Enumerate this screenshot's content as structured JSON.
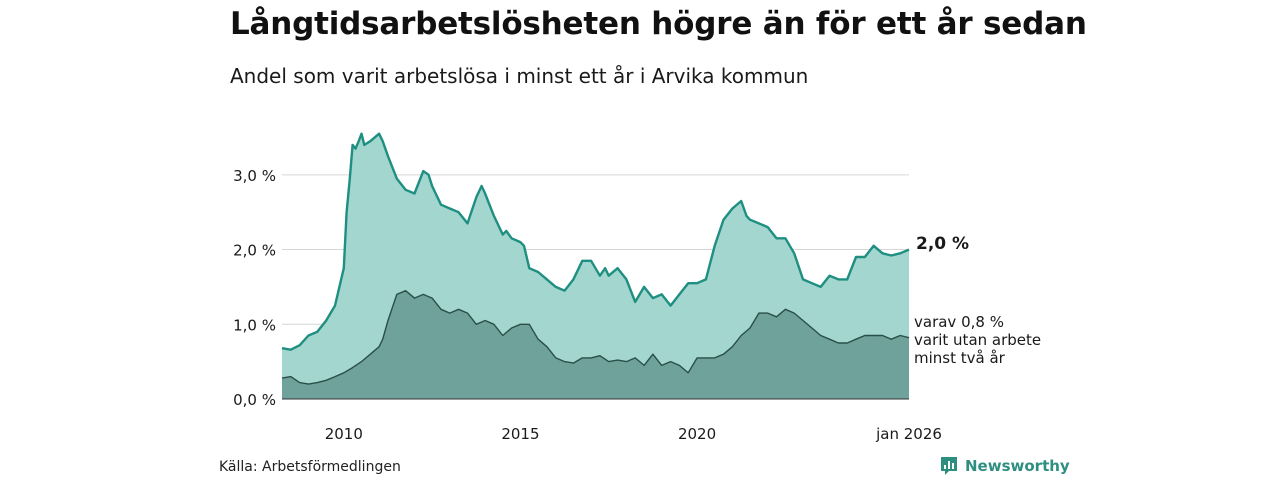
{
  "header": {
    "title": "Långtidsarbetslösheten högre än för ett år sedan",
    "subtitle": "Andel som varit arbetslösa i minst ett år i Arvika kommun"
  },
  "footer": {
    "source": "Källa: Arbetsförmedlingen",
    "brand": "Newsworthy",
    "brand_icon": "bar-chart-icon"
  },
  "colors": {
    "series1_fill": "#a3d6cf",
    "series1_line": "#1e8f80",
    "series2_fill": "#6fa29a",
    "series2_line": "#2a4f4a",
    "grid": "#d6d6d6",
    "brand": "#2e8f80"
  },
  "chart_data": {
    "type": "area",
    "x_range": [
      2008.25,
      2026.0
    ],
    "ylim": [
      0,
      3.6
    ],
    "y_ticks": [
      {
        "value": 0,
        "label": "0,0 %"
      },
      {
        "value": 1,
        "label": "1,0 %"
      },
      {
        "value": 2,
        "label": "2,0 %"
      },
      {
        "value": 3,
        "label": "3,0 %"
      }
    ],
    "x_ticks": [
      {
        "value": 2010.0,
        "label": "2010"
      },
      {
        "value": 2015.0,
        "label": "2015"
      },
      {
        "value": 2020.0,
        "label": "2020"
      },
      {
        "value": 2026.0,
        "label": "jan 2026"
      }
    ],
    "grid": true,
    "series": [
      {
        "x": [
          2008.25,
          2008.5,
          2008.75,
          2009.0,
          2009.25,
          2009.5,
          2009.75,
          2010.0,
          2010.08,
          2010.17,
          2010.25,
          2010.33,
          2010.42,
          2010.5,
          2010.58,
          2010.75,
          2011.0,
          2011.1,
          2011.25,
          2011.5,
          2011.75,
          2012.0,
          2012.25,
          2012.4,
          2012.5,
          2012.75,
          2013.0,
          2013.25,
          2013.5,
          2013.75,
          2013.9,
          2014.0,
          2014.25,
          2014.5,
          2014.6,
          2014.75,
          2015.0,
          2015.1,
          2015.25,
          2015.5,
          2015.75,
          2016.0,
          2016.25,
          2016.5,
          2016.75,
          2017.0,
          2017.25,
          2017.4,
          2017.5,
          2017.75,
          2018.0,
          2018.25,
          2018.5,
          2018.75,
          2019.0,
          2019.25,
          2019.5,
          2019.75,
          2020.0,
          2020.25,
          2020.5,
          2020.75,
          2021.0,
          2021.25,
          2021.4,
          2021.5,
          2021.75,
          2022.0,
          2022.25,
          2022.5,
          2022.75,
          2023.0,
          2023.25,
          2023.5,
          2023.75,
          2024.0,
          2024.25,
          2024.5,
          2024.75,
          2025.0,
          2025.25,
          2025.5,
          2025.75,
          2026.0
        ],
        "values": [
          0.68,
          0.66,
          0.72,
          0.85,
          0.9,
          1.05,
          1.25,
          1.75,
          2.5,
          2.95,
          3.4,
          3.35,
          3.45,
          3.55,
          3.4,
          3.45,
          3.55,
          3.45,
          3.25,
          2.95,
          2.8,
          2.75,
          3.05,
          3.0,
          2.85,
          2.6,
          2.55,
          2.5,
          2.35,
          2.7,
          2.85,
          2.75,
          2.45,
          2.2,
          2.25,
          2.15,
          2.1,
          2.05,
          1.75,
          1.7,
          1.6,
          1.5,
          1.45,
          1.6,
          1.85,
          1.85,
          1.65,
          1.75,
          1.65,
          1.75,
          1.6,
          1.3,
          1.5,
          1.35,
          1.4,
          1.25,
          1.4,
          1.55,
          1.55,
          1.6,
          2.05,
          2.4,
          2.55,
          2.65,
          2.45,
          2.4,
          2.35,
          2.3,
          2.15,
          2.15,
          1.95,
          1.6,
          1.55,
          1.5,
          1.65,
          1.6,
          1.6,
          1.9,
          1.9,
          2.05,
          1.95,
          1.92,
          1.95,
          2.0
        ]
      },
      {
        "x": [
          2008.25,
          2008.5,
          2008.75,
          2009.0,
          2009.25,
          2009.5,
          2009.75,
          2010.0,
          2010.25,
          2010.5,
          2010.75,
          2011.0,
          2011.1,
          2011.25,
          2011.5,
          2011.75,
          2012.0,
          2012.25,
          2012.5,
          2012.75,
          2013.0,
          2013.25,
          2013.5,
          2013.75,
          2014.0,
          2014.25,
          2014.5,
          2014.75,
          2015.0,
          2015.25,
          2015.5,
          2015.75,
          2016.0,
          2016.25,
          2016.5,
          2016.75,
          2017.0,
          2017.25,
          2017.5,
          2017.75,
          2018.0,
          2018.25,
          2018.5,
          2018.75,
          2019.0,
          2019.25,
          2019.5,
          2019.75,
          2020.0,
          2020.25,
          2020.5,
          2020.75,
          2021.0,
          2021.25,
          2021.5,
          2021.75,
          2022.0,
          2022.25,
          2022.5,
          2022.75,
          2023.0,
          2023.25,
          2023.5,
          2023.75,
          2024.0,
          2024.25,
          2024.5,
          2024.75,
          2025.0,
          2025.25,
          2025.5,
          2025.75,
          2026.0
        ],
        "values": [
          0.28,
          0.3,
          0.22,
          0.2,
          0.22,
          0.25,
          0.3,
          0.35,
          0.42,
          0.5,
          0.6,
          0.7,
          0.8,
          1.05,
          1.4,
          1.45,
          1.35,
          1.4,
          1.35,
          1.2,
          1.15,
          1.2,
          1.15,
          1.0,
          1.05,
          1.0,
          0.85,
          0.95,
          1.0,
          1.0,
          0.8,
          0.7,
          0.55,
          0.5,
          0.48,
          0.55,
          0.55,
          0.58,
          0.5,
          0.52,
          0.5,
          0.55,
          0.45,
          0.6,
          0.45,
          0.5,
          0.45,
          0.35,
          0.55,
          0.55,
          0.55,
          0.6,
          0.7,
          0.85,
          0.95,
          1.15,
          1.15,
          1.1,
          1.2,
          1.15,
          1.05,
          0.95,
          0.85,
          0.8,
          0.75,
          0.75,
          0.8,
          0.85,
          0.85,
          0.85,
          0.8,
          0.85,
          0.82
        ]
      }
    ],
    "annotations": [
      {
        "series": 0,
        "label": "2,0 %"
      },
      {
        "series": 1,
        "lines": [
          "varav 0,8 %",
          "varit utan arbete",
          "minst två år"
        ]
      }
    ]
  }
}
